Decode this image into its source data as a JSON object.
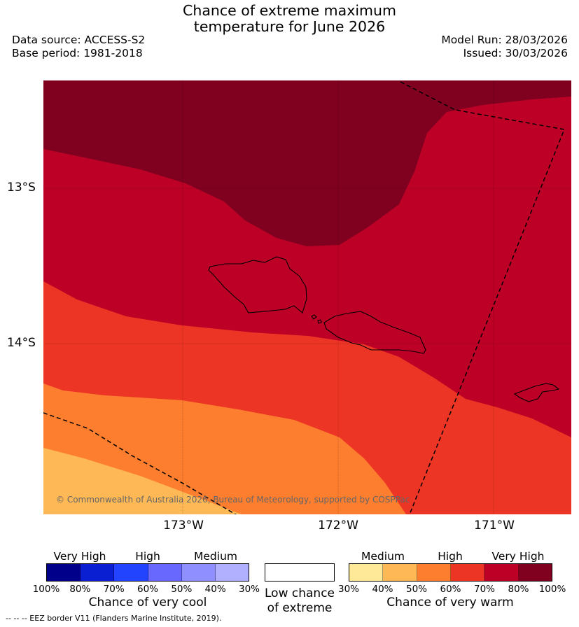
{
  "title": {
    "line1": "Chance of extreme maximum",
    "line2": "temperature for June 2026"
  },
  "meta": {
    "data_source": "Data source: ACCESS-S2",
    "base_period": "Base period: 1981-2018",
    "model_run": "Model Run: 28/03/2026",
    "issued": "Issued: 30/03/2026"
  },
  "map": {
    "lat_labels": [
      "13°S",
      "14°S"
    ],
    "lon_labels": [
      "173°W",
      "172°W",
      "171°W"
    ],
    "copyright": "© Commonwealth of Australia 2026, Bureau of Meteorology, supported by COSPPac",
    "colors": {
      "very_high_warm": "#800020",
      "high_warm_80": "#bd0026",
      "high_warm_70": "#ec3524",
      "medium_warm_60": "#fd7e2f",
      "medium_warm_50": "#feb855",
      "border": "#000000"
    }
  },
  "legend": {
    "cool": {
      "categories": [
        "Very High",
        "High",
        "Medium"
      ],
      "ticks": [
        "100%",
        "80%",
        "70%",
        "60%",
        "50%",
        "40%",
        "30%"
      ],
      "colors": [
        "#00008b",
        "#0a1ed2",
        "#2244ff",
        "#6868ff",
        "#8f8fff",
        "#b0b0ff"
      ],
      "title": "Chance of very cool"
    },
    "neutral": {
      "title_line1": "Low chance",
      "title_line2": "of extreme",
      "color": "#ffffff"
    },
    "warm": {
      "categories": [
        "Medium",
        "High",
        "Very High"
      ],
      "ticks": [
        "30%",
        "40%",
        "50%",
        "60%",
        "70%",
        "80%",
        "100%"
      ],
      "colors": [
        "#fee999",
        "#feb855",
        "#fd7e2f",
        "#ec3524",
        "#bd0026",
        "#800020"
      ],
      "title": "Chance of very warm"
    }
  },
  "footnote": "--  --  -- EEZ border V11 (Flanders Marine Institute, 2019)."
}
